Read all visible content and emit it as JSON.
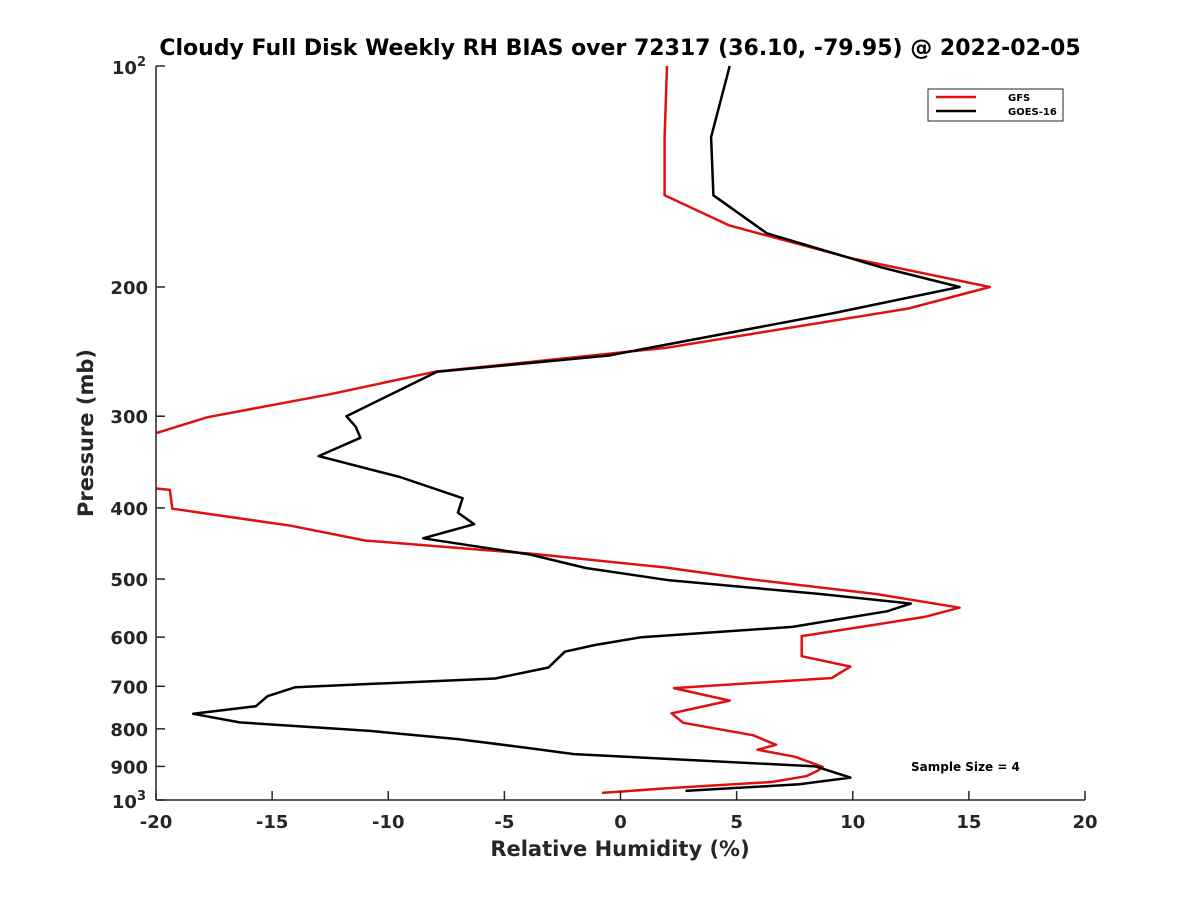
{
  "chart_data": {
    "type": "line",
    "title": "Cloudy Full Disk Weekly RH BIAS over 72317 (36.10, -79.95) @ 2022-02-05",
    "xlabel": "Relative Humidity (%)",
    "ylabel": "Pressure (mb)",
    "xlim": [
      -20,
      20
    ],
    "ylim": [
      100,
      1000
    ],
    "y_scale": "log",
    "y_reversed": true,
    "grid": false,
    "legend_position": "top-right",
    "x_ticks": [
      "-20",
      "-15",
      "-10",
      "-5",
      "0",
      "5",
      "10",
      "15",
      "20"
    ],
    "y_ticks": [
      {
        "value": 100,
        "base": "10",
        "exp": "2"
      },
      {
        "value": 200,
        "label": "200"
      },
      {
        "value": 300,
        "label": "300"
      },
      {
        "value": 400,
        "label": "400"
      },
      {
        "value": 500,
        "label": "500"
      },
      {
        "value": 600,
        "label": "600"
      },
      {
        "value": 700,
        "label": "700"
      },
      {
        "value": 800,
        "label": "800"
      },
      {
        "value": 900,
        "label": "900"
      },
      {
        "value": 1000,
        "base": "10",
        "exp": "3"
      }
    ],
    "annotation": "Sample Size = 4",
    "series": [
      {
        "name": "GFS",
        "color": "#e01010",
        "points": [
          [
            2.0,
            100
          ],
          [
            1.9,
            125
          ],
          [
            1.9,
            150
          ],
          [
            4.7,
            165
          ],
          [
            10.0,
            183
          ],
          [
            15.9,
            200
          ],
          [
            12.4,
            214
          ],
          [
            2.0,
            242
          ],
          [
            -8.0,
            261
          ],
          [
            -12.5,
            280
          ],
          [
            -17.8,
            301
          ],
          [
            -20.5,
            320
          ],
          [
            -20.5,
            375
          ],
          [
            -19.4,
            378
          ],
          [
            -19.3,
            401
          ],
          [
            -14.2,
            423
          ],
          [
            -11.0,
            443
          ],
          [
            -3.8,
            462
          ],
          [
            1.9,
            482
          ],
          [
            5.5,
            500
          ],
          [
            11.0,
            524
          ],
          [
            14.6,
            547
          ],
          [
            13.1,
            563
          ],
          [
            10.5,
            580
          ],
          [
            7.8,
            598
          ],
          [
            7.8,
            616
          ],
          [
            7.8,
            637
          ],
          [
            9.9,
            658
          ],
          [
            9.1,
            682
          ],
          [
            2.3,
            704
          ],
          [
            4.7,
            732
          ],
          [
            2.2,
            762
          ],
          [
            2.7,
            785
          ],
          [
            5.7,
            816
          ],
          [
            6.7,
            841
          ],
          [
            5.9,
            854
          ],
          [
            7.5,
            873
          ],
          [
            8.7,
            901
          ],
          [
            8.5,
            912
          ],
          [
            8.0,
            928
          ],
          [
            6.5,
            945
          ],
          [
            2.0,
            964
          ],
          [
            -0.8,
            978
          ]
        ]
      },
      {
        "name": "GOES-16",
        "color": "#000000",
        "points": [
          [
            4.7,
            100
          ],
          [
            3.9,
            125
          ],
          [
            4.0,
            150
          ],
          [
            6.3,
            169
          ],
          [
            11.2,
            188
          ],
          [
            14.6,
            200
          ],
          [
            9.2,
            217
          ],
          [
            -0.5,
            248
          ],
          [
            -7.9,
            261
          ],
          [
            -11.8,
            300
          ],
          [
            -11.4,
            310
          ],
          [
            -11.2,
            321
          ],
          [
            -13.0,
            340
          ],
          [
            -9.5,
            363
          ],
          [
            -6.8,
            388
          ],
          [
            -7.0,
            406
          ],
          [
            -6.3,
            421
          ],
          [
            -8.5,
            440
          ],
          [
            -3.9,
            463
          ],
          [
            -1.5,
            483
          ],
          [
            2.1,
            502
          ],
          [
            8.6,
            524
          ],
          [
            12.5,
            540
          ],
          [
            11.5,
            553
          ],
          [
            7.4,
            581
          ],
          [
            0.9,
            600
          ],
          [
            -1.1,
            615
          ],
          [
            -2.4,
            628
          ],
          [
            -3.1,
            660
          ],
          [
            -5.4,
            683
          ],
          [
            -14.0,
            702
          ],
          [
            -15.2,
            722
          ],
          [
            -15.7,
            745
          ],
          [
            -18.4,
            763
          ],
          [
            -16.4,
            784
          ],
          [
            -10.8,
            805
          ],
          [
            -7.0,
            826
          ],
          [
            -3.9,
            850
          ],
          [
            -2.0,
            866
          ],
          [
            8.4,
            900
          ],
          [
            9.9,
            932
          ],
          [
            7.7,
            952
          ],
          [
            2.8,
            972
          ]
        ]
      }
    ]
  }
}
